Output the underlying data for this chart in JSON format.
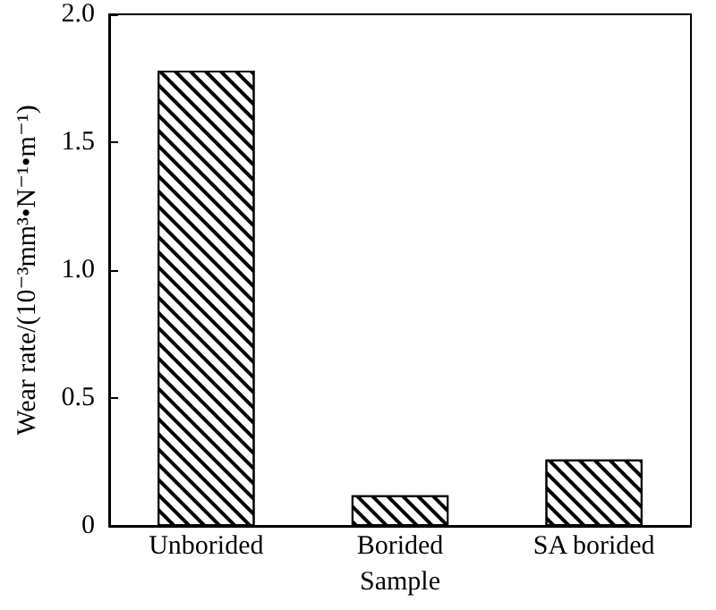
{
  "chart_data": {
    "type": "bar",
    "xlabel": "Sample",
    "ylabel": "Wear rate/(10⁻³mm³•N⁻¹•m⁻¹)",
    "categories": [
      "Unborided",
      "Borided",
      "SA borided"
    ],
    "values": [
      1.78,
      0.12,
      0.26
    ],
    "color": "#ffffff",
    "ylim": [
      0,
      2
    ],
    "yticks": [
      0,
      0.5,
      {
        "value": 1,
        "label": "1.0"
      },
      1.5,
      {
        "value": 2,
        "label": "2.0"
      }
    ],
    "grid": false
  }
}
